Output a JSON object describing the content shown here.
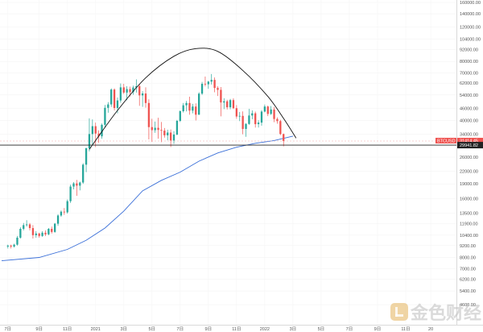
{
  "chart_data": {
    "type": "candlestick",
    "scale": "log",
    "y_ticks": [
      {
        "value": 160000,
        "label": "160000.00"
      },
      {
        "value": 140000,
        "label": "140000.00"
      },
      {
        "value": 120000,
        "label": "120000.00"
      },
      {
        "value": 104000,
        "label": "104000.00"
      },
      {
        "value": 92000,
        "label": "92000.00"
      },
      {
        "value": 80000,
        "label": "80000.00"
      },
      {
        "value": 70000,
        "label": "70000.00"
      },
      {
        "value": 62000,
        "label": "62000.00"
      },
      {
        "value": 54000,
        "label": "54000.00"
      },
      {
        "value": 46000,
        "label": "46000.00"
      },
      {
        "value": 40000,
        "label": "40000.00"
      },
      {
        "value": 34000,
        "label": "34000.00"
      },
      {
        "value": 26000,
        "label": "26000.00"
      },
      {
        "value": 22000,
        "label": "22000.00"
      },
      {
        "value": 19000,
        "label": "19000.00"
      },
      {
        "value": 16000,
        "label": "16000.00"
      },
      {
        "value": 13500,
        "label": "13500.00"
      },
      {
        "value": 11900,
        "label": "11900.00"
      },
      {
        "value": 10400,
        "label": "10400.00"
      },
      {
        "value": 9200,
        "label": "9200.00"
      },
      {
        "value": 8000,
        "label": "8000.00"
      },
      {
        "value": 7000,
        "label": "7000.00"
      },
      {
        "value": 6200,
        "label": "6200.00"
      },
      {
        "value": 5400,
        "label": "5400.00"
      },
      {
        "value": 4600,
        "label": "4600.00"
      }
    ],
    "x_ticks": [
      {
        "value": 0,
        "label": "7日"
      },
      {
        "value": 10,
        "label": "9日"
      },
      {
        "value": 19,
        "label": "11日"
      },
      {
        "value": 28,
        "label": "2021"
      },
      {
        "value": 37,
        "label": "3日"
      },
      {
        "value": 46,
        "label": "5日"
      },
      {
        "value": 55,
        "label": "7日"
      },
      {
        "value": 64,
        "label": "9日"
      },
      {
        "value": 73,
        "label": "11日"
      },
      {
        "value": 82,
        "label": "2022"
      },
      {
        "value": 91,
        "label": "3日"
      },
      {
        "value": 100,
        "label": "5日"
      },
      {
        "value": 109,
        "label": "7日"
      },
      {
        "value": 118,
        "label": "9日"
      },
      {
        "value": 127,
        "label": "11日"
      },
      {
        "value": 135,
        "label": "20"
      }
    ],
    "x_range": [
      -2,
      136
    ],
    "candles": [
      {
        "o": 9100,
        "h": 9300,
        "l": 8900,
        "c": 9200
      },
      {
        "o": 9200,
        "h": 9300,
        "l": 8900,
        "c": 9100
      },
      {
        "o": 9100,
        "h": 9400,
        "l": 9000,
        "c": 9300
      },
      {
        "o": 9300,
        "h": 10300,
        "l": 9200,
        "c": 10100
      },
      {
        "o": 10100,
        "h": 11400,
        "l": 10000,
        "c": 11200
      },
      {
        "o": 11200,
        "h": 12000,
        "l": 11000,
        "c": 11700
      },
      {
        "o": 11700,
        "h": 12400,
        "l": 11500,
        "c": 11800
      },
      {
        "o": 11800,
        "h": 12000,
        "l": 11000,
        "c": 11300
      },
      {
        "o": 11300,
        "h": 11700,
        "l": 10000,
        "c": 10400
      },
      {
        "o": 10400,
        "h": 10900,
        "l": 10100,
        "c": 10600
      },
      {
        "o": 10600,
        "h": 10700,
        "l": 10100,
        "c": 10300
      },
      {
        "o": 10300,
        "h": 10900,
        "l": 10200,
        "c": 10700
      },
      {
        "o": 10700,
        "h": 11000,
        "l": 10300,
        "c": 10500
      },
      {
        "o": 10500,
        "h": 11300,
        "l": 10400,
        "c": 11200
      },
      {
        "o": 11200,
        "h": 11500,
        "l": 10600,
        "c": 10800
      },
      {
        "o": 10800,
        "h": 12000,
        "l": 10700,
        "c": 11900
      },
      {
        "o": 11900,
        "h": 13300,
        "l": 11600,
        "c": 13100
      },
      {
        "o": 13100,
        "h": 13900,
        "l": 12900,
        "c": 13700
      },
      {
        "o": 13700,
        "h": 14300,
        "l": 13200,
        "c": 13600
      },
      {
        "o": 13600,
        "h": 15800,
        "l": 13400,
        "c": 15500
      },
      {
        "o": 15500,
        "h": 18800,
        "l": 15200,
        "c": 18400
      },
      {
        "o": 18400,
        "h": 19400,
        "l": 17800,
        "c": 19100
      },
      {
        "o": 19100,
        "h": 19900,
        "l": 16500,
        "c": 18600
      },
      {
        "o": 18600,
        "h": 19500,
        "l": 17600,
        "c": 19300
      },
      {
        "o": 19300,
        "h": 24200,
        "l": 19000,
        "c": 23800
      },
      {
        "o": 23800,
        "h": 29000,
        "l": 21800,
        "c": 28900
      },
      {
        "o": 28900,
        "h": 41000,
        "l": 27800,
        "c": 34100
      },
      {
        "o": 34100,
        "h": 40500,
        "l": 30100,
        "c": 37400
      },
      {
        "o": 37400,
        "h": 39000,
        "l": 29300,
        "c": 34300
      },
      {
        "o": 34300,
        "h": 35600,
        "l": 30800,
        "c": 33200
      },
      {
        "o": 33200,
        "h": 38600,
        "l": 32300,
        "c": 38000
      },
      {
        "o": 38000,
        "h": 48000,
        "l": 36700,
        "c": 46400
      },
      {
        "o": 46400,
        "h": 49600,
        "l": 43800,
        "c": 48300
      },
      {
        "o": 48300,
        "h": 58300,
        "l": 46900,
        "c": 57500
      },
      {
        "o": 57500,
        "h": 58300,
        "l": 45000,
        "c": 46300
      },
      {
        "o": 46300,
        "h": 52400,
        "l": 43500,
        "c": 50600
      },
      {
        "o": 50600,
        "h": 61700,
        "l": 49300,
        "c": 59000
      },
      {
        "o": 59000,
        "h": 61500,
        "l": 54600,
        "c": 55500
      },
      {
        "o": 55500,
        "h": 59800,
        "l": 50700,
        "c": 57800
      },
      {
        "o": 57800,
        "h": 59500,
        "l": 53000,
        "c": 55800
      },
      {
        "o": 55800,
        "h": 60200,
        "l": 54100,
        "c": 58900
      },
      {
        "o": 58900,
        "h": 64800,
        "l": 55500,
        "c": 59800
      },
      {
        "o": 59800,
        "h": 61000,
        "l": 47500,
        "c": 53700
      },
      {
        "o": 53700,
        "h": 56400,
        "l": 46900,
        "c": 54900
      },
      {
        "o": 54900,
        "h": 59000,
        "l": 46500,
        "c": 49100
      },
      {
        "o": 49100,
        "h": 51300,
        "l": 32000,
        "c": 37000
      },
      {
        "o": 37000,
        "h": 40800,
        "l": 31100,
        "c": 35700
      },
      {
        "o": 35700,
        "h": 39500,
        "l": 34600,
        "c": 36700
      },
      {
        "o": 36700,
        "h": 41300,
        "l": 32300,
        "c": 35800
      },
      {
        "o": 35800,
        "h": 39300,
        "l": 31000,
        "c": 35500
      },
      {
        "o": 35500,
        "h": 36600,
        "l": 32700,
        "c": 33600
      },
      {
        "o": 33600,
        "h": 35900,
        "l": 31700,
        "c": 34700
      },
      {
        "o": 34700,
        "h": 36000,
        "l": 29300,
        "c": 31600
      },
      {
        "o": 31600,
        "h": 35300,
        "l": 30400,
        "c": 33900
      },
      {
        "o": 33900,
        "h": 40300,
        "l": 33600,
        "c": 39800
      },
      {
        "o": 39800,
        "h": 45000,
        "l": 39300,
        "c": 44600
      },
      {
        "o": 44600,
        "h": 49100,
        "l": 43900,
        "c": 47800
      },
      {
        "o": 47800,
        "h": 50300,
        "l": 44500,
        "c": 49100
      },
      {
        "o": 49100,
        "h": 52900,
        "l": 42800,
        "c": 44900
      },
      {
        "o": 44900,
        "h": 48600,
        "l": 43500,
        "c": 47100
      },
      {
        "o": 47100,
        "h": 48900,
        "l": 40000,
        "c": 42800
      },
      {
        "o": 42800,
        "h": 55700,
        "l": 42700,
        "c": 54800
      },
      {
        "o": 54800,
        "h": 62900,
        "l": 54000,
        "c": 61500
      },
      {
        "o": 61500,
        "h": 67000,
        "l": 59700,
        "c": 61200
      },
      {
        "o": 61200,
        "h": 63700,
        "l": 58000,
        "c": 63100
      },
      {
        "o": 63100,
        "h": 69000,
        "l": 61000,
        "c": 64400
      },
      {
        "o": 64400,
        "h": 66300,
        "l": 55700,
        "c": 58600
      },
      {
        "o": 58600,
        "h": 59700,
        "l": 53300,
        "c": 57300
      },
      {
        "o": 57300,
        "h": 59200,
        "l": 42000,
        "c": 49400
      },
      {
        "o": 49400,
        "h": 51900,
        "l": 45700,
        "c": 50100
      },
      {
        "o": 50100,
        "h": 51000,
        "l": 45500,
        "c": 46700
      },
      {
        "o": 46700,
        "h": 51500,
        "l": 45600,
        "c": 50800
      },
      {
        "o": 50800,
        "h": 51900,
        "l": 45700,
        "c": 46200
      },
      {
        "o": 46200,
        "h": 47900,
        "l": 40800,
        "c": 41900
      },
      {
        "o": 41900,
        "h": 44200,
        "l": 39700,
        "c": 42200
      },
      {
        "o": 42200,
        "h": 44500,
        "l": 34000,
        "c": 36200
      },
      {
        "o": 36200,
        "h": 38800,
        "l": 33000,
        "c": 38400
      },
      {
        "o": 38400,
        "h": 45800,
        "l": 38000,
        "c": 42400
      },
      {
        "o": 42400,
        "h": 45000,
        "l": 40600,
        "c": 43500
      },
      {
        "o": 43500,
        "h": 44400,
        "l": 36800,
        "c": 38300
      },
      {
        "o": 38300,
        "h": 40100,
        "l": 36800,
        "c": 39000
      },
      {
        "o": 39000,
        "h": 45200,
        "l": 37600,
        "c": 44400
      },
      {
        "o": 44400,
        "h": 48200,
        "l": 44000,
        "c": 47100
      },
      {
        "o": 47100,
        "h": 47600,
        "l": 42100,
        "c": 43200
      },
      {
        "o": 43200,
        "h": 47400,
        "l": 42700,
        "c": 45500
      },
      {
        "o": 45500,
        "h": 46800,
        "l": 39200,
        "c": 40700
      },
      {
        "o": 40700,
        "h": 41500,
        "l": 38500,
        "c": 39700
      },
      {
        "o": 39700,
        "h": 40300,
        "l": 33700,
        "c": 34100
      },
      {
        "o": 34100,
        "h": 34300,
        "l": 29500,
        "c": 31400
      }
    ],
    "moving_average": [
      [
        -2,
        7700
      ],
      [
        10,
        8000
      ],
      [
        19,
        8800
      ],
      [
        25,
        9800
      ],
      [
        31,
        11300
      ],
      [
        37,
        13800
      ],
      [
        43,
        17500
      ],
      [
        49,
        19800
      ],
      [
        55,
        21800
      ],
      [
        61,
        24800
      ],
      [
        67,
        27300
      ],
      [
        73,
        29200
      ],
      [
        79,
        30600
      ],
      [
        85,
        31600
      ],
      [
        88,
        32400
      ],
      [
        91,
        33300
      ]
    ],
    "arc": [
      [
        26,
        28500
      ],
      [
        35,
        45000
      ],
      [
        44,
        66000
      ],
      [
        53,
        85000
      ],
      [
        60,
        93000
      ],
      [
        67,
        90000
      ],
      [
        75,
        72000
      ],
      [
        83,
        53000
      ],
      [
        88,
        41000
      ],
      [
        92,
        32500
      ]
    ],
    "horizontal_line": {
      "value": 29941.82,
      "label": "29941.82"
    },
    "price_marker": {
      "symbol": "BTCUSD",
      "value": 31414.45,
      "label": "31414.45",
      "sub": "3d 10h"
    },
    "watermark": "金色财经",
    "colors": {
      "up": "#26a69a",
      "down": "#ef5350",
      "ma": "#3a6fd8",
      "arc": "#111111",
      "hline": "#222222",
      "tag_symbol": "#ef5350",
      "tag_value": "#ef5350",
      "hline_tag": "#222222"
    }
  }
}
